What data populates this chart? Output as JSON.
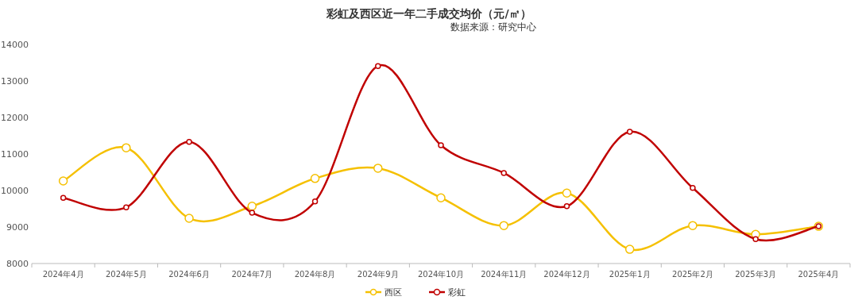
{
  "chart_data": {
    "type": "line",
    "title": "彩虹及西区近一年二手成交均价（元/㎡）",
    "annotations": [
      "数据来源：研究中心"
    ],
    "categories": [
      "2024年4月",
      "2024年5月",
      "2024年6月",
      "2024年7月",
      "2024年8月",
      "2024年9月",
      "2024年10月",
      "2024年11月",
      "2024年12月",
      "2025年1月",
      "2025年2月",
      "2025年3月",
      "2025年4月"
    ],
    "series": [
      {
        "name": "西区",
        "color": "#f5c000",
        "values": [
          10260,
          11170,
          9240,
          9570,
          10330,
          10610,
          9800,
          9040,
          9930,
          8390,
          9040,
          8800,
          9020
        ]
      },
      {
        "name": "彩虹",
        "color": "#c00000",
        "values": [
          9800,
          9540,
          11330,
          9390,
          9700,
          13410,
          11240,
          10480,
          9570,
          11610,
          10070,
          8670,
          9020
        ]
      }
    ],
    "ylim": [
      8000,
      14000
    ],
    "yticks": [
      8000,
      9000,
      10000,
      11000,
      12000,
      13000,
      14000
    ],
    "marker": "circle",
    "legend": "bottom",
    "grid": false
  }
}
